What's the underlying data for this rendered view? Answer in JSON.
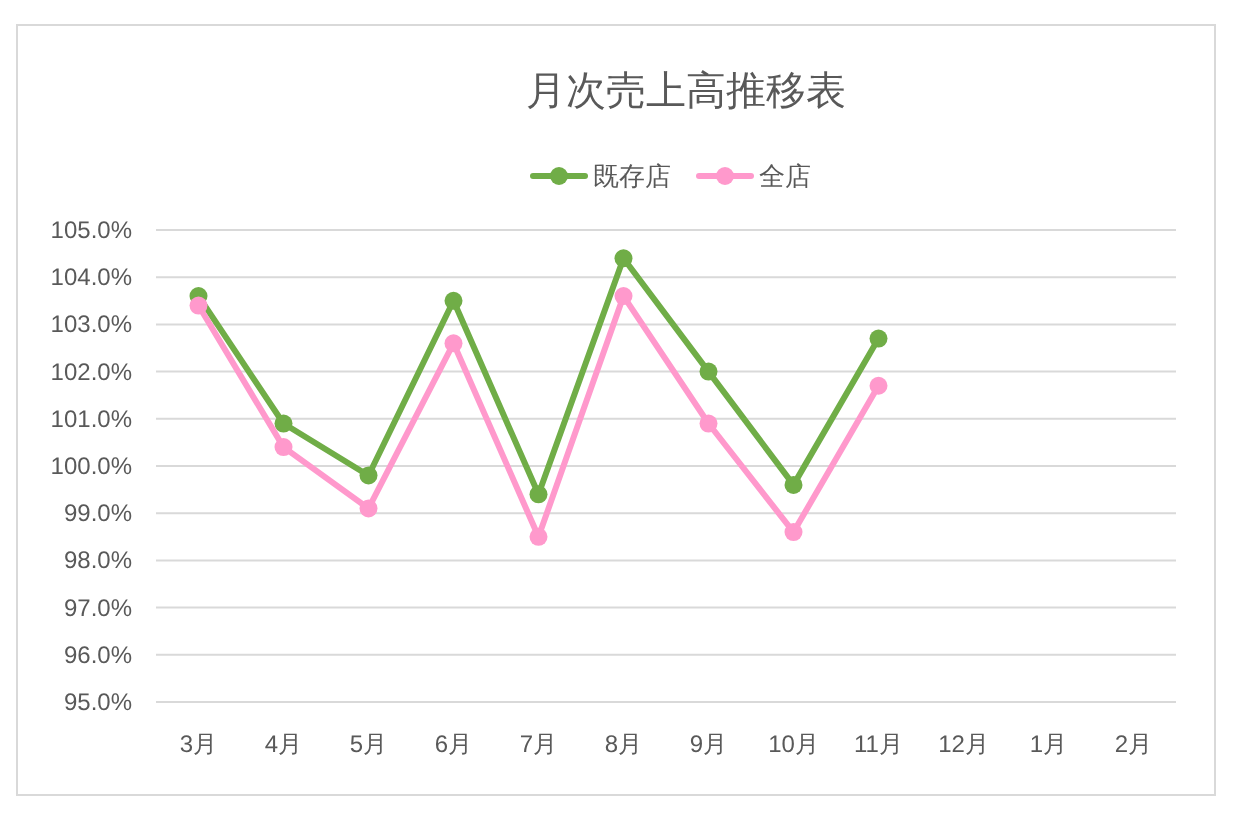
{
  "chart_data": {
    "type": "line",
    "title": "月次売上高推移表",
    "categories": [
      "3月",
      "4月",
      "5月",
      "6月",
      "7月",
      "8月",
      "9月",
      "10月",
      "11月",
      "12月",
      "1月",
      "2月"
    ],
    "series": [
      {
        "name": "既存店",
        "color": "#70ad47",
        "values": [
          103.6,
          100.9,
          99.8,
          103.5,
          99.4,
          104.4,
          102.0,
          99.6,
          102.7,
          null,
          null,
          null
        ]
      },
      {
        "name": "全店",
        "color": "#ff99cc",
        "values": [
          103.4,
          100.4,
          99.1,
          102.6,
          98.5,
          103.6,
          100.9,
          98.6,
          101.7,
          null,
          null,
          null
        ]
      }
    ],
    "ylim": [
      95,
      105
    ],
    "yticks": [
      {
        "value": 95,
        "label": "95.0%"
      },
      {
        "value": 96,
        "label": "96.0%"
      },
      {
        "value": 97,
        "label": "97.0%"
      },
      {
        "value": 98,
        "label": "98.0%"
      },
      {
        "value": 99,
        "label": "99.0%"
      },
      {
        "value": 100,
        "label": "100.0%"
      },
      {
        "value": 101,
        "label": "101.0%"
      },
      {
        "value": 102,
        "label": "102.0%"
      },
      {
        "value": 103,
        "label": "103.0%"
      },
      {
        "value": 104,
        "label": "104.0%"
      },
      {
        "value": 105,
        "label": "105.0%"
      }
    ],
    "grid": "y",
    "legend": "top",
    "marker": "circle",
    "line_style": "solid"
  }
}
